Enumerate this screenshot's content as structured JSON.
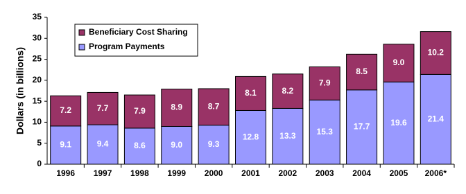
{
  "chart_data": {
    "type": "stacked-bar",
    "y_label": "Dollars (in billions)",
    "categories": [
      "1996",
      "1997",
      "1998",
      "1999",
      "2000",
      "2001",
      "2002",
      "2003",
      "2004",
      "2005",
      "2006*"
    ],
    "series": [
      {
        "name": "Program Payments",
        "color": "#9999ff",
        "values": [
          9.1,
          9.4,
          8.6,
          9.0,
          9.3,
          12.8,
          13.3,
          15.3,
          17.7,
          19.6,
          21.4
        ],
        "value_labels": [
          "9.1",
          "9.4",
          "8.6",
          "9.0",
          "9.3",
          "12.8",
          "13.3",
          "15.3",
          "17.7",
          "19.6",
          "21.4"
        ]
      },
      {
        "name": "Beneficiary Cost Sharing",
        "color": "#993366",
        "values": [
          7.2,
          7.7,
          7.9,
          8.9,
          8.7,
          8.1,
          8.2,
          7.9,
          8.5,
          9.0,
          10.2
        ],
        "value_labels": [
          "7.2",
          "7.7",
          "7.9",
          "8.9",
          "8.7",
          "8.1",
          "8.2",
          "7.9",
          "8.5",
          "9.0",
          "10.2"
        ]
      }
    ],
    "ylim": [
      0,
      35
    ],
    "yticks": [
      0,
      5,
      10,
      15,
      20,
      25,
      30,
      35
    ],
    "legend": "upper-left"
  }
}
